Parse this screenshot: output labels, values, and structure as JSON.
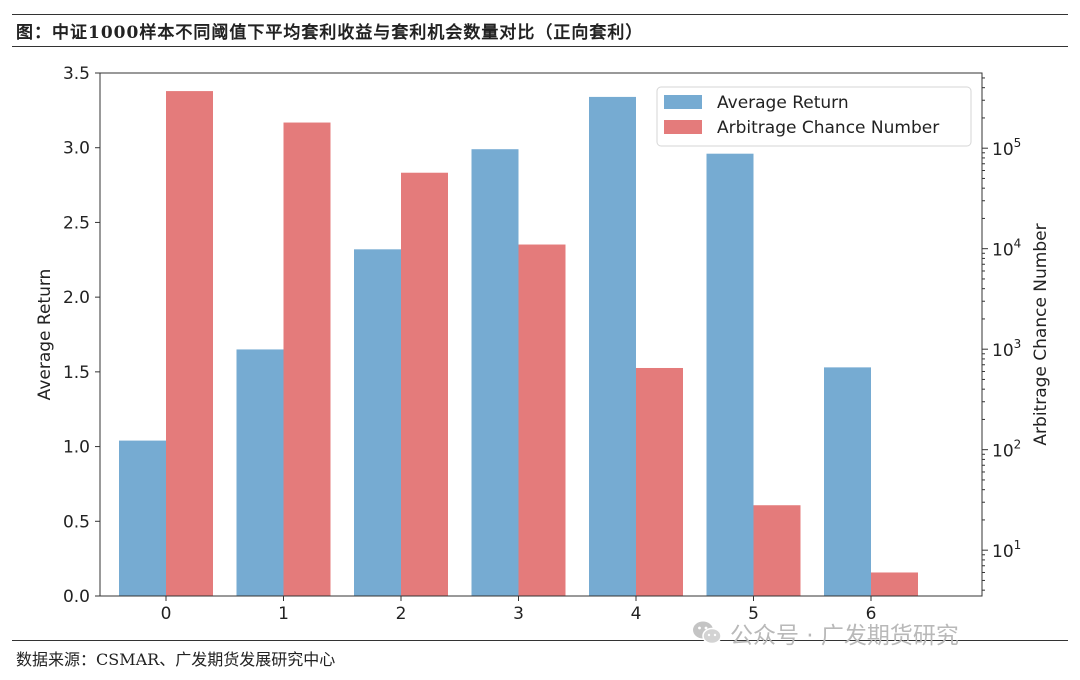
{
  "figure": {
    "title": "图：中证1000样本不同阈值下平均套利收益与套利机会数量对比（正向套利）",
    "source": "数据来源：CSMAR、广发期货发展研究中心",
    "watermark": "公众号 · 广发期货研究",
    "watermark_icon": "wechat-icon"
  },
  "chart_data": {
    "type": "bar",
    "categories": [
      "0",
      "1",
      "2",
      "3",
      "4",
      "5",
      "6"
    ],
    "series": [
      {
        "name": "Average Return",
        "axis": "left",
        "color": "#76abd2",
        "values": [
          1.04,
          1.65,
          2.32,
          2.99,
          3.34,
          2.96,
          1.53
        ]
      },
      {
        "name": "Arbitrage Chance Number",
        "axis": "right",
        "scale": "log",
        "color": "#e47b7b",
        "values": [
          370000,
          180000,
          57000,
          11000,
          650,
          28,
          6
        ]
      }
    ],
    "ylabel": "Average Return",
    "ylim": [
      0,
      3.5
    ],
    "yticks": [
      "0.0",
      "0.5",
      "1.0",
      "1.5",
      "2.0",
      "2.5",
      "3.0",
      "3.5"
    ],
    "y2label": "Arbitrage Chance Number",
    "y2_scale": "log",
    "y2lim": [
      3.5,
      560000
    ],
    "y2ticks": [
      {
        "value": 10,
        "base": "10",
        "exp": "1"
      },
      {
        "value": 100,
        "base": "10",
        "exp": "2"
      },
      {
        "value": 1000,
        "base": "10",
        "exp": "3"
      },
      {
        "value": 10000,
        "base": "10",
        "exp": "4"
      },
      {
        "value": 100000,
        "base": "10",
        "exp": "5"
      }
    ],
    "legend_position": "upper right",
    "grid": false
  }
}
